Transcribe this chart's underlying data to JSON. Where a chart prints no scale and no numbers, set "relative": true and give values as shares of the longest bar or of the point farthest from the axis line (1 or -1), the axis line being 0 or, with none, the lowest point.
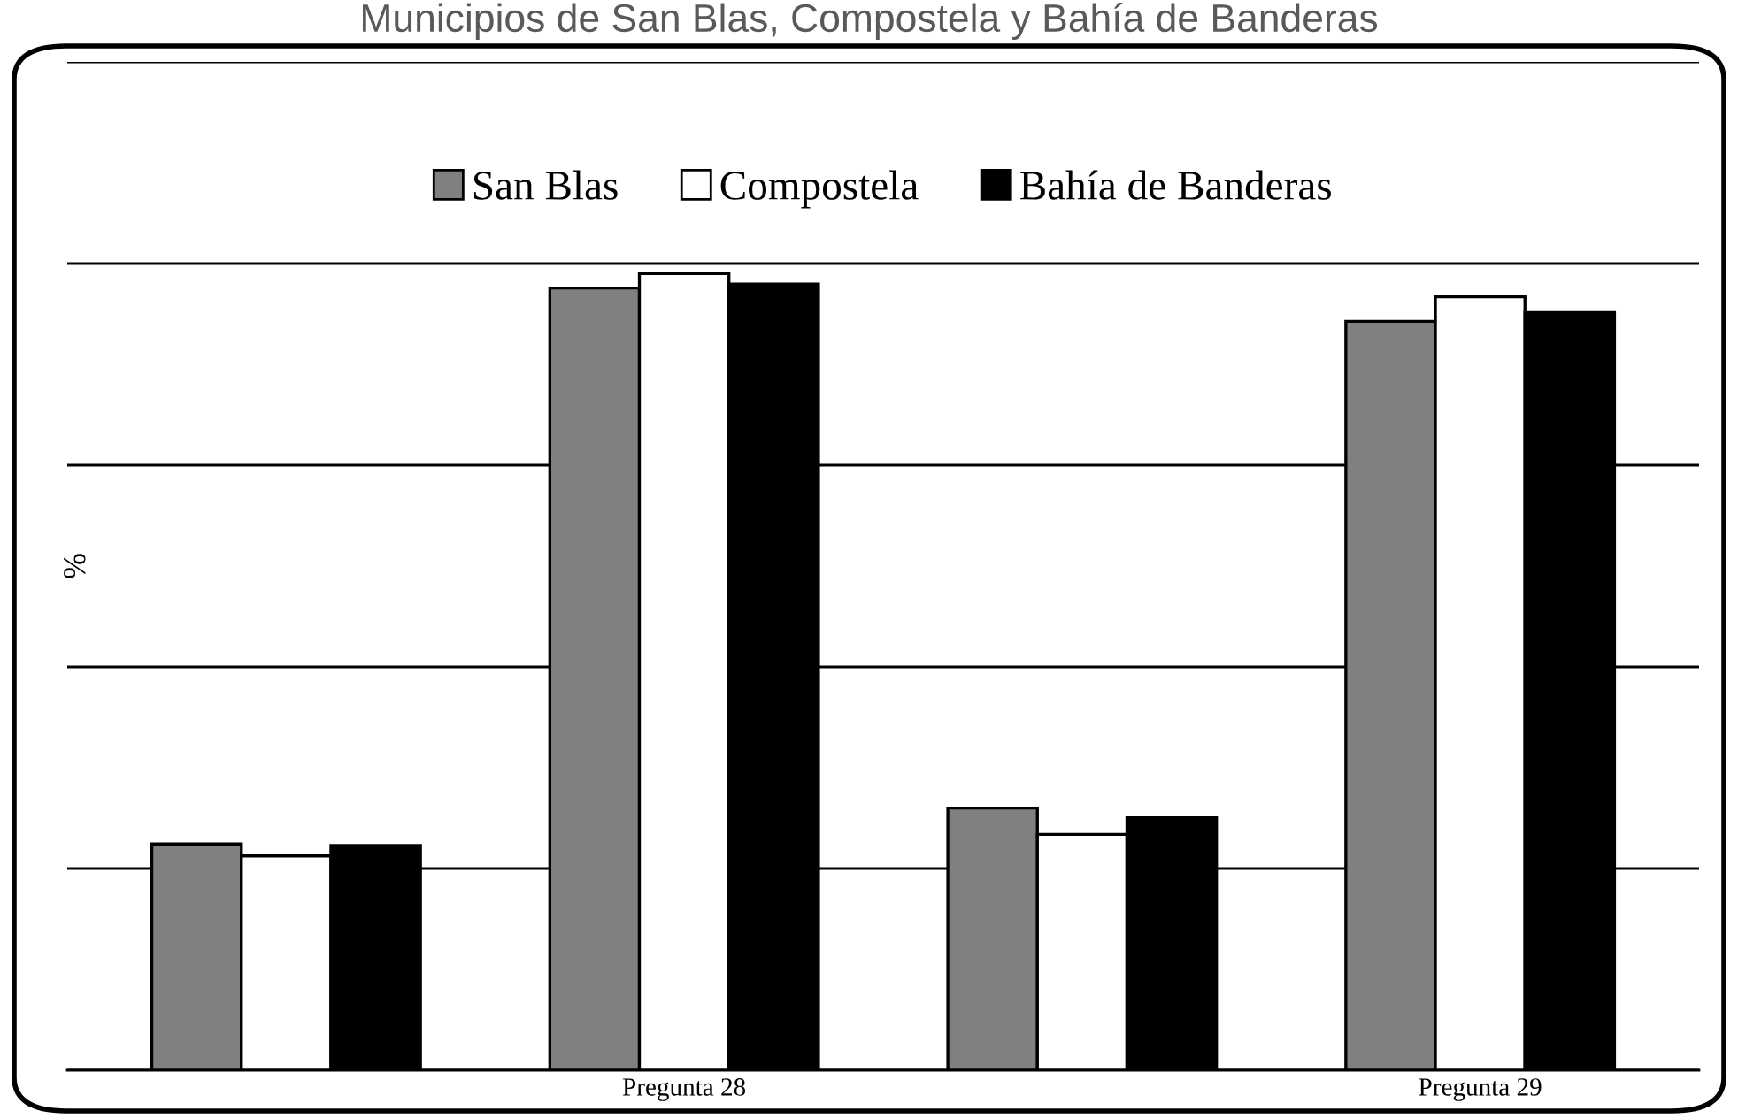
{
  "chart_data": {
    "type": "bar",
    "title": "Municipios de San Blas, Compostela y Bahía de Banderas",
    "ylabel": "%",
    "relative": true,
    "categories": [
      null,
      "Pregunta 28",
      null,
      "Pregunta 29"
    ],
    "series": [
      {
        "name": "San Blas",
        "color": "#808080",
        "values": [
          0.284,
          0.982,
          0.329,
          0.94
        ]
      },
      {
        "name": "Compostela",
        "color": "#ffffff",
        "values": [
          0.269,
          1,
          0.296,
          0.971
        ]
      },
      {
        "name": "Bahía de Banderas",
        "color": "#000000",
        "values": [
          0.282,
          0.987,
          0.318,
          0.951
        ]
      }
    ],
    "grid": "y",
    "legend": "top"
  }
}
